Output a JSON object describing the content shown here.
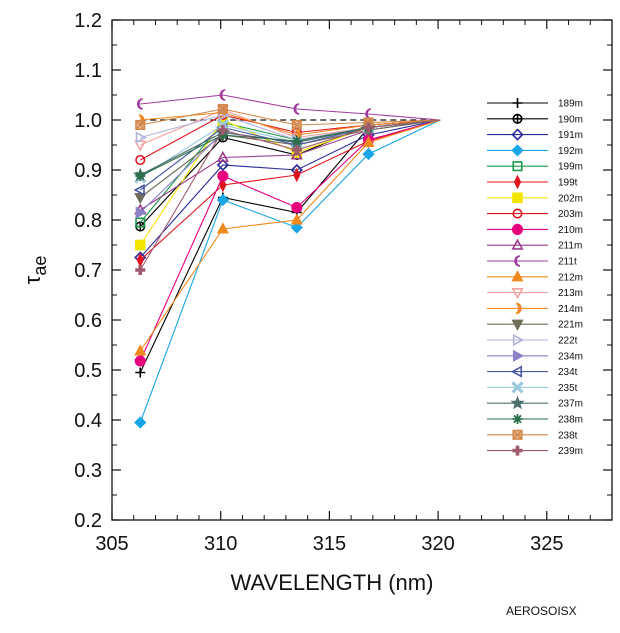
{
  "credit": "AEROSOISX",
  "chart_data": {
    "type": "line",
    "xlabel": "WAVELENGTH (nm)",
    "ylabel_main": "τ",
    "ylabel_sub": "ae",
    "xlim": [
      305,
      328
    ],
    "ylim": [
      0.2,
      1.2
    ],
    "xticks": [
      "305",
      "310",
      "315",
      "320",
      "325"
    ],
    "yticks": [
      "0.2",
      "0.3",
      "0.4",
      "0.5",
      "0.6",
      "0.7",
      "0.8",
      "0.9",
      "1.0",
      "1.1",
      "1.2"
    ],
    "grid": false,
    "legend_position": "right",
    "x": [
      306.3,
      310.1,
      313.5,
      316.8,
      320.1
    ],
    "reference_line": [
      1.0,
      1.0,
      1.0,
      1.0,
      1.0
    ],
    "series": [
      {
        "name": "189m",
        "color": "#000000",
        "marker": "plus",
        "values": [
          0.495,
          0.845,
          0.815,
          0.985,
          1.0
        ]
      },
      {
        "name": "190m",
        "color": "#000000",
        "marker": "circle-plus",
        "values": [
          0.787,
          0.965,
          0.93,
          0.99,
          1.0
        ]
      },
      {
        "name": "191m",
        "color": "#2a2a9a",
        "marker": "diamond-open",
        "values": [
          0.725,
          0.91,
          0.9,
          0.97,
          1.0
        ]
      },
      {
        "name": "192m",
        "color": "#19a6e6",
        "marker": "diamond",
        "values": [
          0.395,
          0.84,
          0.785,
          0.932,
          1.0
        ]
      },
      {
        "name": "199m",
        "color": "#1a9a4a",
        "marker": "square-open",
        "values": [
          0.795,
          0.995,
          0.96,
          0.985,
          1.0
        ]
      },
      {
        "name": "199t",
        "color": "#e0141e",
        "marker": "thin-diamond",
        "values": [
          0.72,
          0.87,
          0.89,
          0.958,
          1.0
        ]
      },
      {
        "name": "202m",
        "color": "#f2e600",
        "marker": "square",
        "values": [
          0.75,
          1.0,
          0.935,
          0.985,
          1.0
        ]
      },
      {
        "name": "203m",
        "color": "#e0141e",
        "marker": "circle-open",
        "values": [
          0.92,
          1.01,
          0.975,
          0.99,
          1.0
        ]
      },
      {
        "name": "210m",
        "color": "#e6007e",
        "marker": "circle",
        "values": [
          0.518,
          0.888,
          0.825,
          0.96,
          1.0
        ]
      },
      {
        "name": "211m",
        "color": "#9a3c8e",
        "marker": "triangle-open",
        "values": [
          0.82,
          0.925,
          0.93,
          0.98,
          1.0
        ]
      },
      {
        "name": "211t",
        "color": "#a03c9e",
        "marker": "crescent",
        "values": [
          1.032,
          1.05,
          1.022,
          1.012,
          1.0
        ]
      },
      {
        "name": "212m",
        "color": "#f08a1e",
        "marker": "triangle",
        "values": [
          0.538,
          0.782,
          0.8,
          0.955,
          1.0
        ]
      },
      {
        "name": "213m",
        "color": "#f5a0a0",
        "marker": "triangle-down-open",
        "values": [
          0.95,
          1.02,
          0.965,
          0.985,
          1.0
        ]
      },
      {
        "name": "214m",
        "color": "#f08a1e",
        "marker": "half-circle",
        "values": [
          1.0,
          1.015,
          0.97,
          0.99,
          1.0
        ]
      },
      {
        "name": "221m",
        "color": "#6e6e5a",
        "marker": "triangle-down",
        "values": [
          0.845,
          0.97,
          0.95,
          0.98,
          1.0
        ]
      },
      {
        "name": "222t",
        "color": "#b4b4dc",
        "marker": "triangle-right-open",
        "values": [
          0.965,
          1.01,
          0.96,
          0.985,
          1.0
        ]
      },
      {
        "name": "234m",
        "color": "#8c82c8",
        "marker": "triangle-right",
        "values": [
          0.815,
          0.975,
          0.955,
          0.985,
          1.0
        ]
      },
      {
        "name": "234t",
        "color": "#4a5aa0",
        "marker": "triangle-left-open",
        "values": [
          0.86,
          0.985,
          0.95,
          0.985,
          1.0
        ]
      },
      {
        "name": "235t",
        "color": "#9ac8dc",
        "marker": "x-thick",
        "values": [
          0.885,
          0.99,
          0.955,
          0.985,
          1.0
        ]
      },
      {
        "name": "237m",
        "color": "#4a6e6e",
        "marker": "star",
        "values": [
          0.89,
          0.975,
          0.955,
          0.985,
          1.0
        ]
      },
      {
        "name": "238m",
        "color": "#2a6e4a",
        "marker": "asterisk",
        "values": [
          0.888,
          0.97,
          0.958,
          0.985,
          1.0
        ]
      },
      {
        "name": "238t",
        "color": "#d2884a",
        "marker": "square-x",
        "values": [
          0.99,
          1.022,
          0.99,
          0.995,
          1.0
        ]
      },
      {
        "name": "239m",
        "color": "#a05a6e",
        "marker": "cross-thick",
        "values": [
          0.7,
          0.98,
          0.94,
          0.985,
          1.0
        ]
      }
    ]
  }
}
